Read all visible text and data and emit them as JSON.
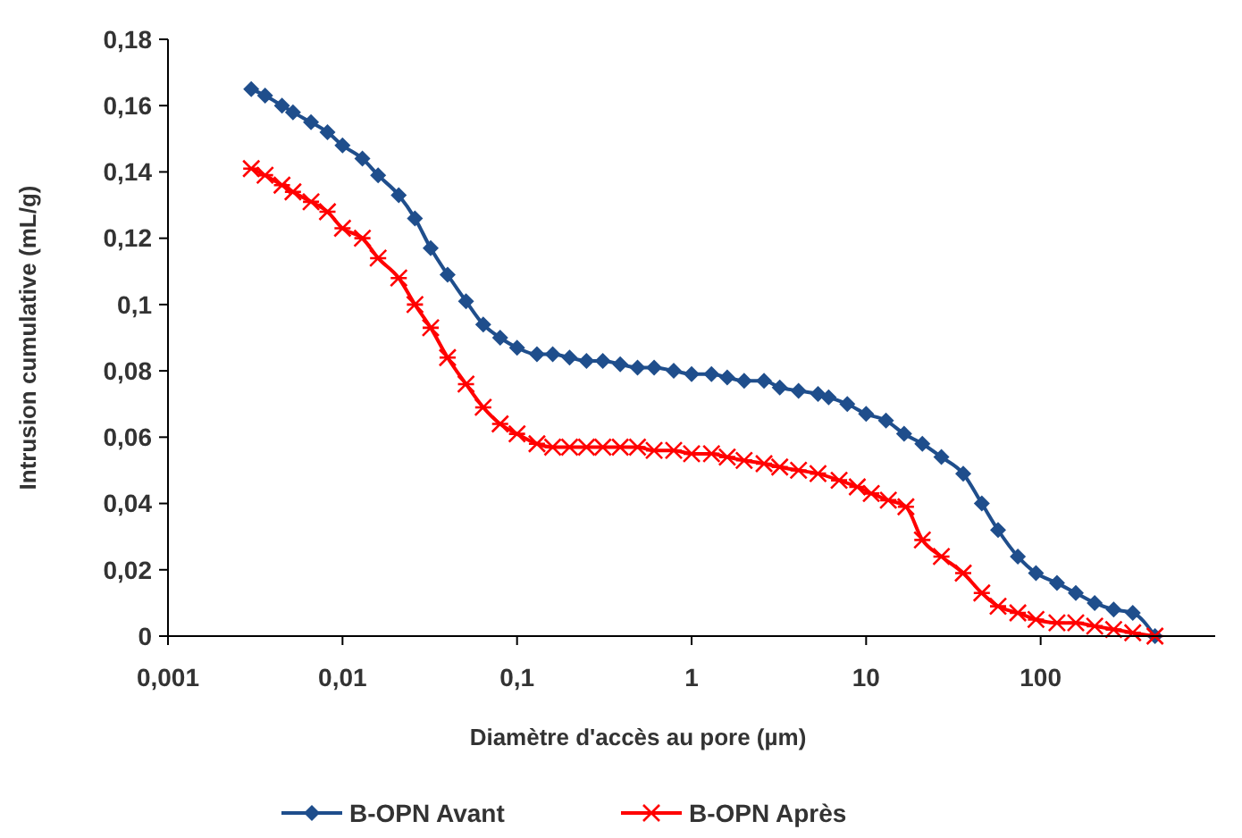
{
  "chart_data": {
    "type": "line",
    "xlabel": "Diamètre d'accès au pore (µm)",
    "ylabel": "Intrusion cumulative (mL/g)",
    "log": "x",
    "grid": false,
    "legend": "bottom",
    "line_style": "solid",
    "xlim": [
      0.001,
      1000
    ],
    "xticks": [
      {
        "value": 0.001,
        "label": "0,001"
      },
      {
        "value": 0.01,
        "label": "0,01"
      },
      {
        "value": 0.1,
        "label": "0,1"
      },
      1,
      10,
      100
    ],
    "ylim": [
      0,
      0.18
    ],
    "yticks": [
      0,
      {
        "value": 0.02,
        "label": "0,02"
      },
      {
        "value": 0.04,
        "label": "0,04"
      },
      {
        "value": 0.06,
        "label": "0,06"
      },
      {
        "value": 0.08,
        "label": "0,08"
      },
      {
        "value": 0.1,
        "label": "0,1"
      },
      {
        "value": 0.12,
        "label": "0,12"
      },
      {
        "value": 0.14,
        "label": "0,14"
      },
      {
        "value": 0.16,
        "label": "0,16"
      },
      {
        "value": 0.18,
        "label": "0,18"
      }
    ],
    "series": [
      {
        "name": "B-OPN Avant",
        "color": "#1f4e8c",
        "marker": "diamond",
        "x": [
          0.003,
          0.0036,
          0.0045,
          0.0052,
          0.0066,
          0.0082,
          0.01,
          0.013,
          0.016,
          0.021,
          0.026,
          0.032,
          0.04,
          0.051,
          0.064,
          0.08,
          0.1,
          0.13,
          0.16,
          0.2,
          0.25,
          0.31,
          0.39,
          0.49,
          0.61,
          0.79,
          1.0,
          1.3,
          1.6,
          2.0,
          2.6,
          3.2,
          4.1,
          5.3,
          6.1,
          7.8,
          10,
          13,
          16.5,
          21,
          27,
          36,
          46,
          57,
          74,
          94,
          124,
          159,
          204,
          262,
          337,
          452
        ],
        "values": [
          0.165,
          0.163,
          0.16,
          0.158,
          0.155,
          0.152,
          0.148,
          0.144,
          0.139,
          0.133,
          0.126,
          0.117,
          0.109,
          0.101,
          0.094,
          0.09,
          0.087,
          0.085,
          0.085,
          0.084,
          0.083,
          0.083,
          0.082,
          0.081,
          0.081,
          0.08,
          0.079,
          0.079,
          0.078,
          0.077,
          0.077,
          0.075,
          0.074,
          0.073,
          0.072,
          0.07,
          0.067,
          0.065,
          0.061,
          0.058,
          0.054,
          0.049,
          0.04,
          0.032,
          0.024,
          0.019,
          0.016,
          0.013,
          0.01,
          0.008,
          0.007,
          0
        ]
      },
      {
        "name": "B-OPN Après",
        "color": "#ff0000",
        "marker": "cross",
        "x": [
          0.003,
          0.0036,
          0.0045,
          0.0052,
          0.0066,
          0.0082,
          0.01,
          0.013,
          0.016,
          0.021,
          0.026,
          0.032,
          0.04,
          0.051,
          0.064,
          0.08,
          0.1,
          0.13,
          0.16,
          0.2,
          0.25,
          0.31,
          0.39,
          0.49,
          0.61,
          0.79,
          1.0,
          1.3,
          1.6,
          2.0,
          2.6,
          3.2,
          4.1,
          5.3,
          7.0,
          8.9,
          10.7,
          13.4,
          16.9,
          21,
          27,
          36,
          46,
          57,
          74,
          94,
          124,
          159,
          204,
          262,
          337,
          452
        ],
        "values": [
          0.141,
          0.139,
          0.136,
          0.134,
          0.131,
          0.128,
          0.123,
          0.12,
          0.114,
          0.108,
          0.1,
          0.093,
          0.084,
          0.076,
          0.069,
          0.064,
          0.061,
          0.058,
          0.057,
          0.057,
          0.057,
          0.057,
          0.057,
          0.057,
          0.056,
          0.056,
          0.055,
          0.055,
          0.054,
          0.053,
          0.052,
          0.051,
          0.05,
          0.049,
          0.047,
          0.045,
          0.043,
          0.041,
          0.039,
          0.029,
          0.024,
          0.019,
          0.013,
          0.009,
          0.007,
          0.005,
          0.004,
          0.004,
          0.003,
          0.002,
          0.001,
          0
        ]
      }
    ]
  }
}
